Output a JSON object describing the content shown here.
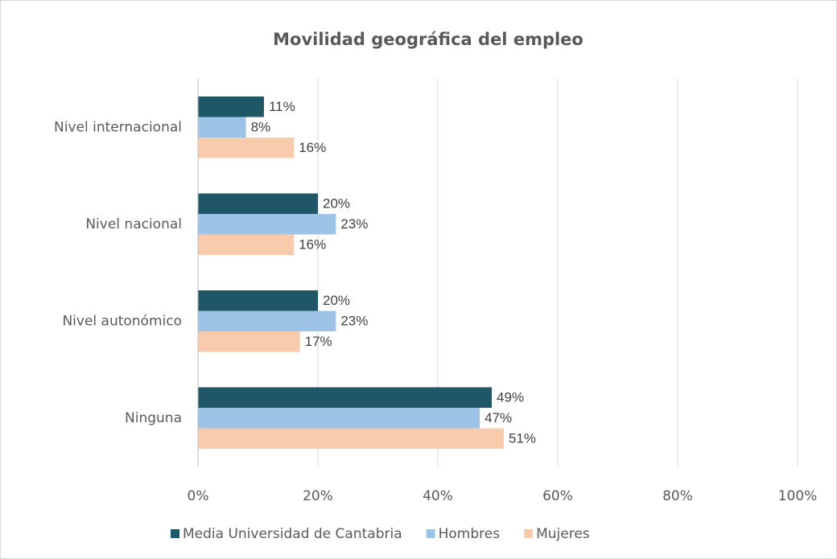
{
  "chart_data": {
    "type": "barh",
    "title": "Movilidad geográfica del empleo",
    "categories": [
      "Nivel internacional",
      "Nivel nacional",
      "Nivel autonómico",
      "Ninguna"
    ],
    "series": [
      {
        "name": "Media Universidad de Cantabria",
        "color": "#1f5766",
        "values": [
          11,
          20,
          20,
          49
        ],
        "value_labels": [
          "11%",
          "20%",
          "20%",
          "49%"
        ]
      },
      {
        "name": "Hombres",
        "color": "#9dc3e6",
        "values": [
          8,
          23,
          23,
          47
        ],
        "value_labels": [
          "8%",
          "23%",
          "23%",
          "47%"
        ]
      },
      {
        "name": "Mujeres",
        "color": "#f8cbad",
        "values": [
          16,
          16,
          17,
          51
        ],
        "value_labels": [
          "16%",
          "16%",
          "17%",
          "51%"
        ]
      }
    ],
    "xlim": [
      0,
      100
    ],
    "xticks": [
      {
        "value": 0,
        "label": "0%"
      },
      {
        "value": 20,
        "label": "20%"
      },
      {
        "value": 40,
        "label": "40%"
      },
      {
        "value": 60,
        "label": "60%"
      },
      {
        "value": 80,
        "label": "80%"
      },
      {
        "value": 100,
        "label": "100%"
      }
    ],
    "grid": true,
    "legend": "bottom"
  }
}
